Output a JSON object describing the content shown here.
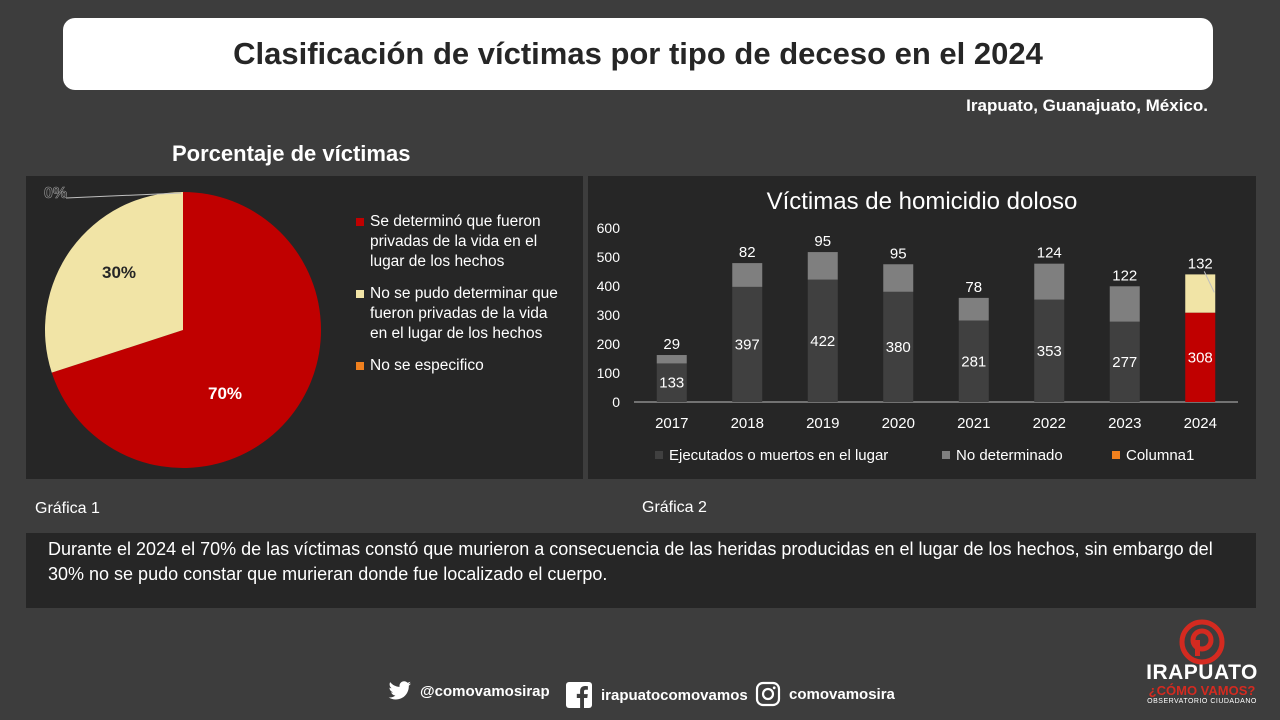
{
  "header": {
    "title": "Clasificación de víctimas por tipo de deceso en el 2024",
    "location": "Irapuato, Guanajuato, México."
  },
  "pie": {
    "heading": "Porcentaje de víctimas",
    "caption": "Gráfica 1"
  },
  "bar": {
    "caption": "Gráfica 2"
  },
  "chart_data": [
    {
      "type": "pie",
      "title": "Porcentaje de víctimas",
      "categories": [
        "Se determinó que fueron privadas de la vida en el lugar de los hechos",
        "No se pudo determinar que fueron privadas de la vida en el lugar de los hechos",
        "No se especifico"
      ],
      "values": [
        70,
        30,
        0
      ],
      "data_labels": [
        "70%",
        "30%",
        "0%"
      ],
      "colors": [
        "#c00000",
        "#f1e4a6",
        "#f0801e"
      ],
      "legend_position": "right"
    },
    {
      "type": "bar",
      "stacked": true,
      "title": "Víctimas de homicidio doloso",
      "categories": [
        "2017",
        "2018",
        "2019",
        "2020",
        "2021",
        "2022",
        "2023",
        "2024"
      ],
      "series": [
        {
          "name": "Ejecutados o muertos en el lugar",
          "values": [
            133,
            397,
            422,
            380,
            281,
            353,
            277,
            308
          ],
          "color": "#404040"
        },
        {
          "name": "No determinado",
          "values": [
            29,
            82,
            95,
            95,
            78,
            124,
            122,
            132
          ],
          "color": "#7f7f7f"
        },
        {
          "name": "Columna1",
          "values": [
            0,
            0,
            0,
            0,
            0,
            0,
            0,
            0
          ],
          "color": "#f0801e"
        }
      ],
      "highlight_2024": {
        "bottom_color": "#c00000",
        "top_color": "#f1e4a6"
      },
      "y_ticks": [
        "0",
        "100",
        "200",
        "300",
        "400",
        "500",
        "600"
      ],
      "ylim": [
        0,
        600
      ],
      "grid": false,
      "legend_position": "bottom"
    }
  ],
  "note": {
    "text": "Durante el 2024 el 70% de las víctimas constó que murieron a consecuencia de las heridas producidas en el lugar de los hechos, sin embargo del 30% no se pudo constar que murieran donde fue localizado el cuerpo."
  },
  "social": {
    "twitter": "@comovamosirap",
    "facebook": "irapuatocomovamos",
    "instagram": "comovamosira"
  },
  "logo": {
    "name": "IRAPUATO",
    "tagline": "¿CÓMO VAMOS?",
    "sub": "OBSERVATORIO CIUDADANO"
  }
}
